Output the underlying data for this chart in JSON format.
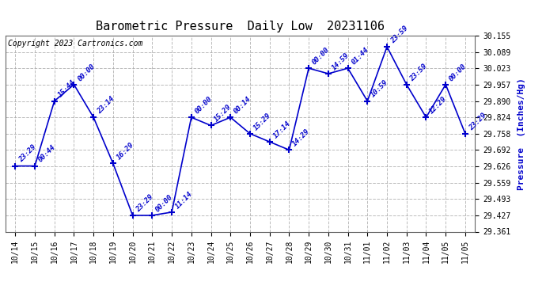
{
  "title": "Barometric Pressure  Daily Low  20231106",
  "copyright": "Copyright 2023 Cartronics.com",
  "ylabel": "Pressure  (Inches/Hg)",
  "ylim": [
    29.361,
    30.155
  ],
  "yticks": [
    29.361,
    29.427,
    29.493,
    29.559,
    29.626,
    29.692,
    29.758,
    29.824,
    29.89,
    29.957,
    30.023,
    30.089,
    30.155
  ],
  "line_color": "#0000CC",
  "annotation_color": "#0000CC",
  "background_color": "#ffffff",
  "grid_color": "#aaaaaa",
  "dates": [
    "10/14",
    "10/15",
    "10/16",
    "10/17",
    "10/18",
    "10/19",
    "10/20",
    "10/21",
    "10/22",
    "10/23",
    "10/24",
    "10/25",
    "10/26",
    "10/27",
    "10/28",
    "10/29",
    "10/30",
    "10/31",
    "11/01",
    "11/02",
    "11/03",
    "11/04",
    "11/05",
    "11/05"
  ],
  "values": [
    29.627,
    29.627,
    29.89,
    29.957,
    29.824,
    29.637,
    29.427,
    29.427,
    29.44,
    29.824,
    29.791,
    29.824,
    29.758,
    29.725,
    29.692,
    30.023,
    30.001,
    30.023,
    29.89,
    30.11,
    29.957,
    29.824,
    29.957,
    29.758
  ],
  "annotations": [
    "23:29",
    "00:44",
    "15:44",
    "00:00",
    "23:14",
    "16:29",
    "23:29",
    "00:00",
    "11:14",
    "00:00",
    "15:29",
    "00:14",
    "15:29",
    "17:14",
    "14:29",
    "00:00",
    "14:59",
    "01:44",
    "10:59",
    "23:59",
    "23:59",
    "12:29",
    "00:00",
    "23:29"
  ],
  "fig_width": 6.9,
  "fig_height": 3.75,
  "dpi": 100,
  "title_fontsize": 11,
  "annotation_fontsize": 6.5,
  "tick_fontsize": 7,
  "copyright_fontsize": 7
}
